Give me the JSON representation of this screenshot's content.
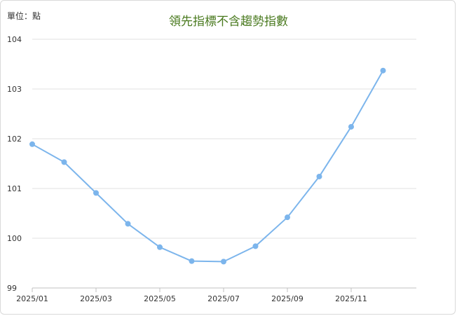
{
  "unit_label": "單位：點",
  "chart_data": {
    "type": "line",
    "title": "領先指標不含趨勢指數",
    "xlabel": "",
    "ylabel": "",
    "ylim": [
      99,
      104
    ],
    "yticks": [
      99,
      100,
      101,
      102,
      103,
      104
    ],
    "x": [
      "2025/01",
      "2025/02",
      "2025/03",
      "2025/04",
      "2025/05",
      "2025/06",
      "2025/07",
      "2025/08",
      "2025/09",
      "2025/10",
      "2025/11",
      "2025/12"
    ],
    "xtick_labels": [
      "2025/01",
      "2025/03",
      "2025/05",
      "2025/07",
      "2025/09",
      "2025/11"
    ],
    "series": [
      {
        "values": [
          101.89,
          101.53,
          100.91,
          100.29,
          99.82,
          99.54,
          99.53,
          99.84,
          100.42,
          101.24,
          102.24,
          103.37
        ],
        "color": "#7cb5ec"
      }
    ],
    "grid": true,
    "legend": "none"
  }
}
